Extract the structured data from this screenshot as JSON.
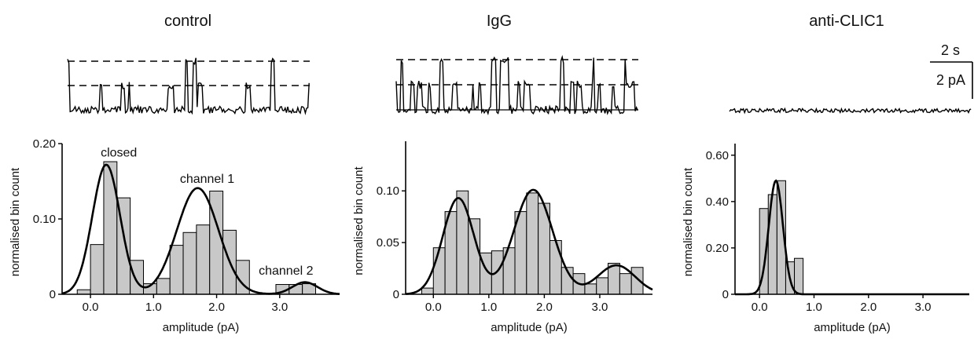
{
  "panels": [
    {
      "title": "control"
    },
    {
      "title": "IgG"
    },
    {
      "title": "anti-CLIC1"
    }
  ],
  "scalebar": {
    "time_label": "2 s",
    "current_label": "2  pA"
  },
  "colors": {
    "bar_fill": "#c8c8c8",
    "line": "#000000"
  },
  "chart_data": [
    {
      "type": "bar",
      "title": "control",
      "xlabel": "amplitude (pA)",
      "ylabel": "normalised bin count",
      "xlim": [
        -0.45,
        3.95
      ],
      "ylim": [
        0,
        0.2
      ],
      "xticks": [
        {
          "v": 0.0,
          "label": "0.0"
        },
        {
          "v": 1.0,
          "label": "1.0"
        },
        {
          "v": 2.0,
          "label": "2.0"
        },
        {
          "v": 3.0,
          "label": "3.0"
        }
      ],
      "yticks": [
        {
          "v": 0,
          "label": "0"
        },
        {
          "v": 0.1,
          "label": "0.10"
        },
        {
          "v": 0.2,
          "label": "0.20"
        }
      ],
      "bin_width": 0.21,
      "bins": [
        {
          "x": -0.105,
          "y": 0.006
        },
        {
          "x": 0.105,
          "y": 0.066
        },
        {
          "x": 0.315,
          "y": 0.176
        },
        {
          "x": 0.525,
          "y": 0.128
        },
        {
          "x": 0.735,
          "y": 0.045
        },
        {
          "x": 0.945,
          "y": 0.014
        },
        {
          "x": 1.155,
          "y": 0.021
        },
        {
          "x": 1.365,
          "y": 0.065
        },
        {
          "x": 1.575,
          "y": 0.082
        },
        {
          "x": 1.785,
          "y": 0.092
        },
        {
          "x": 1.995,
          "y": 0.137
        },
        {
          "x": 2.205,
          "y": 0.085
        },
        {
          "x": 2.415,
          "y": 0.045
        },
        {
          "x": 3.045,
          "y": 0.013
        },
        {
          "x": 3.255,
          "y": 0.013
        },
        {
          "x": 3.465,
          "y": 0.014
        }
      ],
      "fit_components": [
        {
          "mu": 0.25,
          "sigma": 0.22,
          "amp": 0.172
        },
        {
          "mu": 1.7,
          "sigma": 0.33,
          "amp": 0.141
        },
        {
          "mu": 3.4,
          "sigma": 0.2,
          "amp": 0.016
        }
      ],
      "annotations": [
        {
          "text": "closed",
          "x": 0.45,
          "y": 0.183
        },
        {
          "text": "channel 1",
          "x": 1.85,
          "y": 0.148
        },
        {
          "text": "channel 2",
          "x": 3.1,
          "y": 0.026
        }
      ]
    },
    {
      "type": "bar",
      "title": "IgG",
      "xlabel": "amplitude (pA)",
      "ylabel": "normalised bin count",
      "xlim": [
        -0.5,
        3.95
      ],
      "ylim": [
        0,
        0.148
      ],
      "xticks": [
        {
          "v": 0.0,
          "label": "0.0"
        },
        {
          "v": 1.0,
          "label": "1.0"
        },
        {
          "v": 2.0,
          "label": "2.0"
        },
        {
          "v": 3.0,
          "label": "3.0"
        }
      ],
      "yticks": [
        {
          "v": 0,
          "label": "0"
        },
        {
          "v": 0.05,
          "label": "0.05"
        },
        {
          "v": 0.1,
          "label": "0.10"
        }
      ],
      "bin_width": 0.21,
      "bins": [
        {
          "x": -0.105,
          "y": 0.006
        },
        {
          "x": 0.105,
          "y": 0.045
        },
        {
          "x": 0.315,
          "y": 0.08
        },
        {
          "x": 0.525,
          "y": 0.1
        },
        {
          "x": 0.735,
          "y": 0.073
        },
        {
          "x": 0.945,
          "y": 0.04
        },
        {
          "x": 1.155,
          "y": 0.042
        },
        {
          "x": 1.365,
          "y": 0.045
        },
        {
          "x": 1.575,
          "y": 0.08
        },
        {
          "x": 1.785,
          "y": 0.098
        },
        {
          "x": 1.995,
          "y": 0.088
        },
        {
          "x": 2.205,
          "y": 0.052
        },
        {
          "x": 2.415,
          "y": 0.026
        },
        {
          "x": 2.625,
          "y": 0.02
        },
        {
          "x": 2.835,
          "y": 0.01
        },
        {
          "x": 3.045,
          "y": 0.016
        },
        {
          "x": 3.255,
          "y": 0.03
        },
        {
          "x": 3.465,
          "y": 0.02
        },
        {
          "x": 3.675,
          "y": 0.026
        }
      ],
      "fit_components": [
        {
          "mu": 0.45,
          "sigma": 0.28,
          "amp": 0.093
        },
        {
          "mu": 1.8,
          "sigma": 0.35,
          "amp": 0.101
        },
        {
          "mu": 3.3,
          "sigma": 0.34,
          "amp": 0.028
        }
      ]
    },
    {
      "type": "bar",
      "title": "anti-CLIC1",
      "xlabel": "amplitude (pA)",
      "ylabel": "normalised bin count",
      "xlim": [
        -0.45,
        3.85
      ],
      "ylim": [
        0,
        0.65
      ],
      "xticks": [
        {
          "v": 0.0,
          "label": "0.0"
        },
        {
          "v": 1.0,
          "label": "1.0"
        },
        {
          "v": 2.0,
          "label": "2.0"
        },
        {
          "v": 3.0,
          "label": "3.0"
        }
      ],
      "yticks": [
        {
          "v": 0,
          "label": "0"
        },
        {
          "v": 0.2,
          "label": "0.20"
        },
        {
          "v": 0.4,
          "label": "0.40"
        },
        {
          "v": 0.6,
          "label": "0.60"
        }
      ],
      "bin_width": 0.16,
      "bins": [
        {
          "x": 0.08,
          "y": 0.37
        },
        {
          "x": 0.24,
          "y": 0.43
        },
        {
          "x": 0.4,
          "y": 0.49
        },
        {
          "x": 0.56,
          "y": 0.14
        },
        {
          "x": 0.72,
          "y": 0.155
        }
      ],
      "fit_components": [
        {
          "mu": 0.3,
          "sigma": 0.13,
          "amp": 0.49
        }
      ]
    }
  ]
}
